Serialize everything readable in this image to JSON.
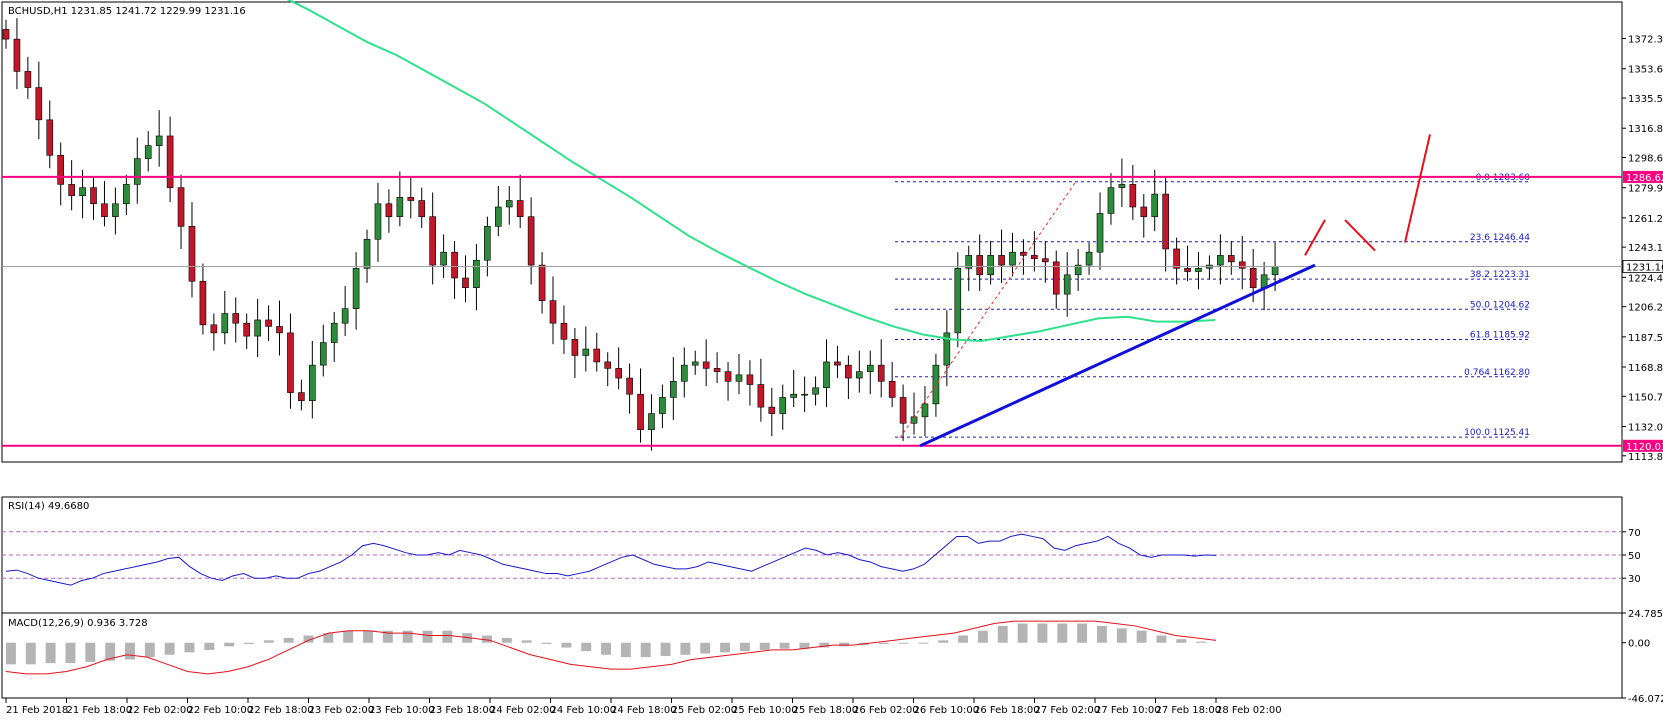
{
  "chart_data": [
    {
      "panel": "price",
      "type": "candlestick",
      "header": "BCHUSD,H1  1231.85 1241.72 1229.99 1231.16",
      "symbol": "BCHUSD",
      "timeframe": "H1",
      "ohlc": {
        "open": 1231.85,
        "high": 1241.72,
        "low": 1229.99,
        "close": 1231.16
      },
      "ylim": [
        1110.0,
        1395.0
      ],
      "y_ticks": [
        "1372.35",
        "1353.65",
        "1335.50",
        "1316.80",
        "1298.65",
        "1279.95",
        "1261.25",
        "1243.10",
        "1224.40",
        "1206.25",
        "1187.55",
        "1168.85",
        "1150.70",
        "1132.00",
        "1113.85"
      ],
      "current_price_label": "1231.16",
      "current_price": 1231.16,
      "resistance": {
        "value": 1286.62,
        "label": "1286.62",
        "color": "#ff0080"
      },
      "support": {
        "value": 1120.03,
        "label": "1120.03",
        "color": "#ff0080"
      },
      "fibonacci": [
        {
          "label": "0.0  1283.60",
          "value": 1283.6
        },
        {
          "label": "23.6  1246.44",
          "value": 1246.44
        },
        {
          "label": "38.2  1223.31",
          "value": 1223.31
        },
        {
          "label": "50.0  1204.62",
          "value": 1204.62
        },
        {
          "label": "61.8  1185.92",
          "value": 1185.92
        },
        {
          "label": "0.764  1162.80",
          "value": 1162.8
        },
        {
          "label": "100.0  1125.41",
          "value": 1125.41
        }
      ],
      "trendline": {
        "from": [
          0,
          1120
        ],
        "to": [
          1,
          1232
        ],
        "color": "#1010dd"
      },
      "x_labels": [
        "21 Feb 2018",
        "21 Feb 18:00",
        "22 Feb 02:00",
        "22 Feb 10:00",
        "22 Feb 18:00",
        "23 Feb 02:00",
        "23 Feb 10:00",
        "23 Feb 18:00",
        "24 Feb 02:00",
        "24 Feb 10:00",
        "24 Feb 18:00",
        "25 Feb 02:00",
        "25 Feb 10:00",
        "25 Feb 18:00",
        "26 Feb 02:00",
        "26 Feb 10:00",
        "26 Feb 18:00",
        "27 Feb 02:00",
        "27 Feb 10:00",
        "27 Feb 18:00",
        "28 Feb 02:00"
      ],
      "colors": {
        "bull": "#2e8b3c",
        "bear": "#c0182a",
        "ma": "#2ee28c",
        "fib": "#1a1acc",
        "projection": "#e8101a"
      },
      "close_path": [
        1372,
        1352,
        1342,
        1322,
        1300,
        1282,
        1275,
        1280,
        1270,
        1262,
        1270,
        1282,
        1298,
        1306,
        1312,
        1280,
        1256,
        1222,
        1195,
        1190,
        1202,
        1196,
        1188,
        1198,
        1194,
        1190,
        1153,
        1148,
        1170,
        1184,
        1196,
        1205,
        1230,
        1248,
        1270,
        1262,
        1274,
        1272,
        1262,
        1232,
        1240,
        1224,
        1218,
        1235,
        1256,
        1268,
        1272,
        1262,
        1232,
        1210,
        1196,
        1186,
        1176,
        1180,
        1172,
        1168,
        1162,
        1152,
        1130,
        1140,
        1150,
        1160,
        1170,
        1172,
        1168,
        1166,
        1160,
        1164,
        1158,
        1144,
        1140,
        1150,
        1152,
        1152,
        1156,
        1172,
        1170,
        1162,
        1166,
        1170,
        1160,
        1150,
        1134,
        1138,
        1146,
        1170,
        1190,
        1230,
        1238,
        1226,
        1238,
        1232,
        1240,
        1238,
        1236,
        1234,
        1214,
        1226,
        1232,
        1240,
        1264,
        1280,
        1282,
        1268,
        1262,
        1276,
        1242,
        1230,
        1228,
        1230,
        1232,
        1238,
        1234,
        1230,
        1218,
        1226,
        1231
      ],
      "ma_path": [
        1399,
        1390,
        1380,
        1370,
        1362,
        1352,
        1342,
        1332,
        1320,
        1308,
        1296,
        1285,
        1274,
        1262,
        1250,
        1240,
        1231,
        1222,
        1214,
        1207,
        1200,
        1194,
        1189,
        1186,
        1185,
        1188,
        1191,
        1195,
        1199,
        1200,
        1197,
        1197,
        1198
      ],
      "rsi_path": [
        36,
        37,
        34,
        30,
        28,
        26,
        24,
        28,
        30,
        34,
        36,
        38,
        40,
        42,
        44,
        47,
        48,
        40,
        34,
        30,
        28,
        32,
        34,
        30,
        30,
        32,
        30,
        30,
        34,
        36,
        40,
        44,
        50,
        58,
        60,
        58,
        55,
        52,
        50,
        50,
        52,
        50,
        54,
        52,
        50,
        46,
        42,
        40,
        38,
        36,
        34,
        34,
        32,
        34,
        36,
        40,
        44,
        48,
        50,
        46,
        42,
        40,
        38,
        38,
        40,
        44,
        42,
        40,
        38,
        36,
        40,
        44,
        48,
        52,
        56,
        54,
        50,
        52,
        50,
        46,
        44,
        40,
        38,
        36,
        38,
        42,
        50,
        58,
        66,
        66,
        60,
        62,
        62,
        66,
        68,
        66,
        64,
        56,
        54,
        58,
        60,
        62,
        66,
        60,
        56,
        50,
        48,
        50,
        50,
        50,
        49,
        50,
        49.67
      ],
      "macd_hist": [
        -18,
        -18,
        -17,
        -17,
        -16,
        -15,
        -14,
        -12,
        -10,
        -8,
        -6,
        -3,
        -1,
        2,
        4,
        6,
        8,
        10,
        10,
        10,
        10,
        10,
        10,
        8,
        6,
        4,
        2,
        -1,
        -4,
        -7,
        -10,
        -12,
        -12,
        -11,
        -10,
        -9,
        -8,
        -7,
        -6,
        -5,
        -5,
        -4,
        -3,
        -2,
        -1,
        0,
        0,
        2,
        6,
        10,
        14,
        16,
        16,
        16,
        16,
        14,
        12,
        10,
        6,
        3,
        1
      ],
      "macd_signal": [
        -24,
        -26,
        -26,
        -24,
        -20,
        -14,
        -10,
        -12,
        -18,
        -24,
        -26,
        -24,
        -20,
        -14,
        -6,
        2,
        8,
        10,
        10,
        8,
        8,
        6,
        6,
        4,
        2,
        -4,
        -10,
        -14,
        -18,
        -20,
        -22,
        -22,
        -20,
        -18,
        -14,
        -12,
        -10,
        -8,
        -6,
        -6,
        -4,
        -2,
        -2,
        0,
        2,
        4,
        6,
        8,
        12,
        16,
        18,
        18,
        18,
        18,
        18,
        16,
        14,
        10,
        6,
        4,
        2
      ]
    },
    {
      "panel": "rsi",
      "type": "line",
      "header": "RSI(14) 49.6680",
      "last_value": 49.668,
      "ylim": [
        0,
        100
      ],
      "y_ticks": [
        "70",
        "50",
        "30"
      ],
      "levels": [
        70,
        50,
        30
      ],
      "color": "#1a1acc"
    },
    {
      "panel": "macd",
      "type": "bar",
      "header": "MACD(12,26,9) 0.936 3.728",
      "macd": 0.936,
      "signal": 3.728,
      "y_ticks": [
        "24.785",
        "0.00",
        "-46.072"
      ],
      "ylim": [
        -46.072,
        24.785
      ],
      "colors": {
        "histogram": "#b4b4b4",
        "signal": "#e8101a"
      }
    }
  ]
}
